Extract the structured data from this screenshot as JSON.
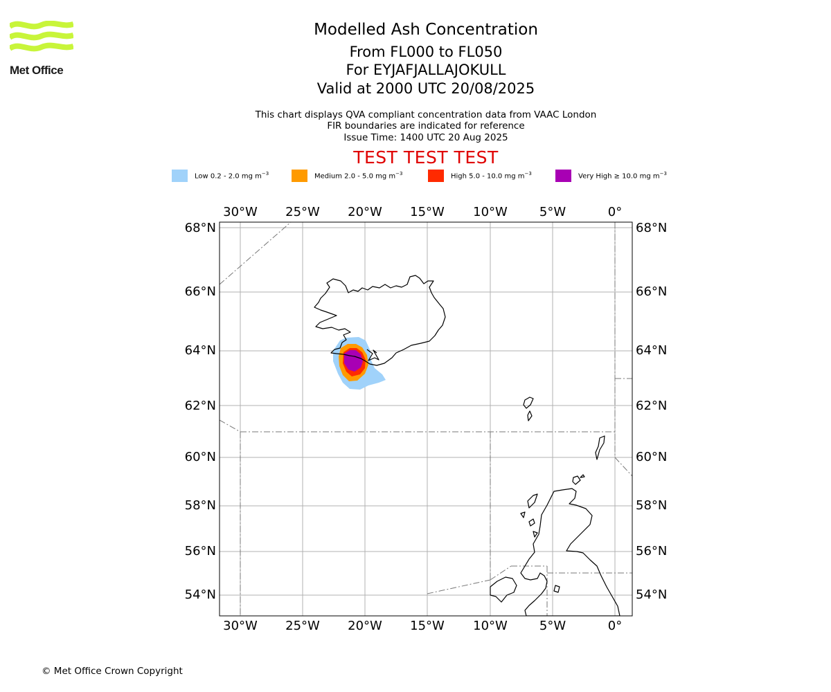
{
  "logo": {
    "text": "Met Office",
    "color": "#c8f53a"
  },
  "title": {
    "line1": "Modelled Ash Concentration",
    "line2": "From FL000 to FL050",
    "line3": "For EYJAFJALLAJOKULL",
    "line4": "Valid at 2000 UTC 20/08/2025"
  },
  "subtitle": {
    "line1": "This chart displays QVA compliant concentration data from VAAC London",
    "line2": "FIR boundaries are indicated for reference",
    "line3": "Issue Time: 1400 UTC 20 Aug 2025"
  },
  "warning": "TEST TEST TEST",
  "legend": [
    {
      "label": "Low 0.2 - 2.0 mg m",
      "sup": "−3",
      "color": "#a0d2fa"
    },
    {
      "label": "Medium 2.0 - 5.0 mg m",
      "sup": "−3",
      "color": "#ff9a00"
    },
    {
      "label": "High 5.0 - 10.0 mg m",
      "sup": "−3",
      "color": "#ff2a00"
    },
    {
      "label": "Very High  ≥  10.0 mg m",
      "sup": "−3",
      "color": "#a800b4"
    }
  ],
  "map": {
    "lon_ticks": [
      "30°W",
      "25°W",
      "20°W",
      "15°W",
      "10°W",
      "5°W",
      "0°"
    ],
    "lat_ticks": [
      "68°N",
      "66°N",
      "64°N",
      "62°N",
      "60°N",
      "58°N",
      "56°N",
      "54°N"
    ],
    "lon_range": [
      -31.6,
      1.4
    ],
    "lat_range": [
      53.2,
      68.2
    ],
    "grid": true,
    "features": [
      "Iceland coastline",
      "Faroe Islands",
      "Shetland Islands",
      "Scotland and Northern England",
      "Northern Ireland",
      "FIR boundaries"
    ]
  },
  "copyright": "© Met Office Crown Copyright"
}
